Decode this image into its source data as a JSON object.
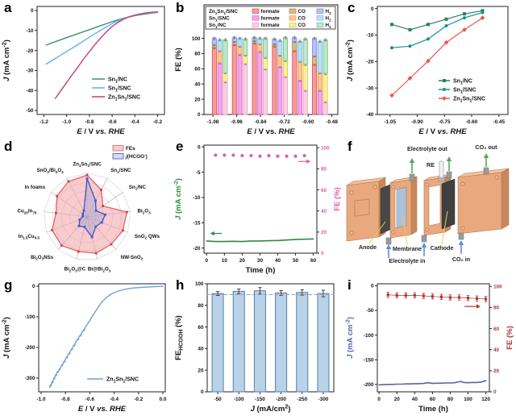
{
  "figure": {
    "background": "#ffffff"
  },
  "panels": {
    "a": {
      "letter": "a"
    },
    "b": {
      "letter": "b"
    },
    "c": {
      "letter": "c"
    },
    "d": {
      "letter": "d"
    },
    "e": {
      "letter": "e"
    },
    "f": {
      "letter": "f",
      "labels": {
        "electrolyte_out": "Electrolyte out",
        "co2_out": "CO₂ out",
        "re": "RE",
        "anode": "Anode",
        "membrane": "Membrane",
        "cathode": "Cathode",
        "electrolyte_in": "Electrolyte in",
        "co2_in": "CO₂ in"
      }
    },
    "g": {
      "letter": "g"
    },
    "h": {
      "letter": "h"
    },
    "i": {
      "letter": "i"
    }
  },
  "chart_data": [
    {
      "id": "a",
      "type": "line",
      "xlabel": "*E* / V *vs. RHE*",
      "ylabel": "*J* (mA cm^{-2})",
      "xlim": [
        -1.26,
        -0.14
      ],
      "ylim": [
        -52,
        2
      ],
      "xticks": [
        "-1.2",
        "-1.0",
        "-0.8",
        "-0.6",
        "-0.4",
        "-0.2"
      ],
      "yticks": [
        "0",
        "-10",
        "-20",
        "-30",
        "-40",
        "-50"
      ],
      "series": [
        {
          "name": "Sn_{1}/NC",
          "color": "#3d8e72",
          "x": [
            -1.18,
            -1.1,
            -1.0,
            -0.9,
            -0.8,
            -0.7,
            -0.6,
            -0.5,
            -0.45,
            -0.4,
            -0.35,
            -0.3,
            -0.25,
            -0.2
          ],
          "y": [
            -17.3,
            -15.6,
            -13.6,
            -11.6,
            -9.6,
            -7.6,
            -5.6,
            -3.9,
            -3.2,
            -2.6,
            -2.1,
            -1.7,
            -1.3,
            -1.0
          ]
        },
        {
          "name": "Sn_{1}/SNC",
          "color": "#57b7e8",
          "x": [
            -1.18,
            -1.1,
            -1.05,
            -1.0,
            -0.95,
            -0.9,
            -0.85,
            -0.8,
            -0.75,
            -0.7,
            -0.65,
            -0.6,
            -0.55,
            -0.5,
            -0.45,
            -0.4,
            -0.35,
            -0.3,
            -0.25,
            -0.2
          ],
          "y": [
            -26.8,
            -24.0,
            -22.3,
            -20.5,
            -18.8,
            -17.0,
            -15.2,
            -13.4,
            -11.6,
            -9.9,
            -8.2,
            -6.6,
            -5.2,
            -4.0,
            -3.1,
            -2.4,
            -1.8,
            -1.4,
            -1.1,
            -0.9
          ]
        },
        {
          "name": "Zn_{1}Sn_{1}/SNC",
          "color": "#c23e78",
          "x": [
            -1.1,
            -1.05,
            -1.0,
            -0.95,
            -0.9,
            -0.85,
            -0.8,
            -0.75,
            -0.7,
            -0.65,
            -0.6,
            -0.55,
            -0.5,
            -0.45,
            -0.4,
            -0.35,
            -0.3,
            -0.25,
            -0.2
          ],
          "y": [
            -44.0,
            -40.0,
            -36.0,
            -32.0,
            -28.2,
            -24.2,
            -20.6,
            -17.0,
            -13.7,
            -10.6,
            -8.0,
            -6.0,
            -4.4,
            -3.2,
            -2.3,
            -1.7,
            -1.2,
            -0.9,
            -0.7
          ]
        }
      ]
    },
    {
      "id": "b",
      "type": "stacked-bar",
      "xlabel": "*E* / V vs. *RHE*",
      "ylabel": "FE (%)",
      "xlim": [
        -1.125,
        -0.45
      ],
      "ylim": [
        0,
        144
      ],
      "xticks": [
        "-1.08",
        "-0.96",
        "-0.84",
        "-0.72",
        "-0.60",
        "-0.48"
      ],
      "yticks": [
        "0",
        "20",
        "40",
        "60",
        "80",
        "100"
      ],
      "group_pos": [
        -1.045,
        -0.944,
        -0.843,
        -0.742,
        -0.641,
        -0.54
      ],
      "series": [
        {
          "name": "Zn_{1}Sn_{1}/SNC",
          "segments": [
            {
              "label": "formate",
              "fill": "#f59b9b",
              "stroke": "#d94f4f",
              "values": [
                88,
                92,
                94,
                90,
                84,
                66
              ]
            },
            {
              "label": "CO",
              "fill": "#d9bc84",
              "stroke": "#a8863d",
              "values": [
                4,
                4,
                3,
                3,
                12,
                11
              ]
            },
            {
              "label": "H_{2}",
              "fill": "#b9c0f7",
              "stroke": "#7b87dd",
              "values": [
                8,
                5,
                4,
                6,
                5,
                23
              ]
            }
          ]
        },
        {
          "name": "Sn_{1}/SNC",
          "segments": [
            {
              "label": "formate",
              "fill": "#f2a6ec",
              "stroke": "#d95fcf",
              "values": [
                68,
                79,
                83,
                63,
                45,
                32
              ]
            },
            {
              "label": "CO",
              "fill": "#f9c695",
              "stroke": "#ee9440",
              "values": [
                16,
                11,
                10,
                15,
                25,
                23
              ]
            },
            {
              "label": "H_{2}",
              "fill": "#bce0f7",
              "stroke": "#72b6e3",
              "values": [
                14,
                10,
                7,
                19,
                26,
                41
              ]
            }
          ]
        },
        {
          "name": "Sn_{1}/NC",
          "segments": [
            {
              "label": "formate",
              "fill": "#f9cfe0",
              "stroke": "#ef9fc0",
              "values": [
                43,
                67,
                60,
                50,
                32,
                17
              ]
            },
            {
              "label": "CO",
              "fill": "#f7ef9f",
              "stroke": "#ddc93f",
              "values": [
                12,
                11,
                15,
                21,
                34,
                37
              ]
            },
            {
              "label": "H_{2}",
              "fill": "#bfe8c9",
              "stroke": "#6fc488",
              "values": [
                43,
                21,
                25,
                30,
                33,
                44
              ]
            }
          ]
        }
      ]
    },
    {
      "id": "c",
      "type": "linemark",
      "xlabel": "*E* / V *vs. RHE*",
      "ylabel": "*J* (mA cm^{-2})",
      "xlim": [
        -1.12,
        -0.4
      ],
      "ylim": [
        -40,
        0.8
      ],
      "xticks": [
        "-1.05",
        "-0.90",
        "-0.75",
        "-0.60",
        "-0.45"
      ],
      "yticks": [
        "0",
        "-10",
        "-20",
        "-30",
        "-40"
      ],
      "series": [
        {
          "name": "Sn_{1}/NC",
          "color": "#2b7d5f",
          "marker": "square",
          "x": [
            -1.04,
            -0.94,
            -0.84,
            -0.74,
            -0.64,
            -0.54
          ],
          "y": [
            -6.0,
            -8.0,
            -6.0,
            -4.0,
            -2.0,
            -0.8
          ]
        },
        {
          "name": "Sn_{1}/SNC",
          "color": "#13948b",
          "marker": "circle",
          "x": [
            -1.04,
            -0.94,
            -0.84,
            -0.74,
            -0.64,
            -0.54
          ],
          "y": [
            -14.8,
            -14.2,
            -11.5,
            -6.5,
            -3.5,
            -1.5
          ]
        },
        {
          "name": "Zn_{1}Sn_{1}/SNC",
          "color": "#e8554d",
          "marker": "diamond",
          "x": [
            -1.04,
            -0.94,
            -0.84,
            -0.74,
            -0.64,
            -0.54
          ],
          "y": [
            -32.8,
            -26.3,
            -19.8,
            -12.8,
            -8.0,
            -3.5
          ]
        }
      ]
    },
    {
      "id": "d",
      "type": "radar",
      "categories": [
        "Zn_{1}Sn_{1}/SNC",
        "Sn_{1}/SNC",
        "Sn_{1}/NC",
        "Bi_{2}O_{3}",
        "SnO_{2} QWs",
        "NW-SnO_{2}",
        "Bi@Bi_{2}O_{3}",
        "Bi_{2}O_{3}@C",
        "Bi_{2}O_{3}NSs",
        "In_{1.5}Cu_{0.5}",
        "Cu_{20}In_{75}",
        "In foams",
        "SnO_{2}/Bi_{2}O_{3}"
      ],
      "rings": 5,
      "series": [
        {
          "name": "FEs",
          "color": "#e26168",
          "fill": "rgba(243,160,165,0.55)",
          "marker_color": "#cf3f48",
          "values": [
            0.96,
            0.7,
            0.44,
            0.92,
            0.88,
            0.84,
            0.86,
            0.82,
            0.88,
            0.86,
            0.72,
            0.84,
            0.92
          ]
        },
        {
          "name": "*j*(HCOO^{-})",
          "color": "#3a55c0",
          "fill": "rgba(148,160,215,0.38)",
          "marker_color": "#3f5fc4",
          "values": [
            0.88,
            0.42,
            0.25,
            0.42,
            0.36,
            0.3,
            0.48,
            0.24,
            0.28,
            0.18,
            0.1,
            0.12,
            0.16
          ]
        }
      ]
    },
    {
      "id": "e",
      "type": "dual",
      "xlabel": "Time (h)",
      "ylabel": "*J* (mA cm^{-2})",
      "ylabel_color": "#2e8b3d",
      "ylabel_right": "FE (%)",
      "right_color": "#dd5fa4",
      "xlim": [
        -1.5,
        62
      ],
      "ylim": [
        -21,
        0.35
      ],
      "ylim_right": [
        0,
        102.5
      ],
      "xticks": [
        "0",
        "10",
        "20",
        "30",
        "40",
        "50",
        "60"
      ],
      "yticks": [
        "0",
        "-5",
        "-10",
        "-15",
        "-20"
      ],
      "yticks_right": [
        "0",
        "20",
        "40",
        "60",
        "80",
        "100"
      ],
      "series": [
        {
          "name": "J",
          "axis": "left",
          "kind": "line",
          "color": "#2e8b3d",
          "x": [
            0,
            5,
            10,
            15,
            20,
            25,
            30,
            35,
            40,
            45,
            50,
            55,
            60
          ],
          "y": [
            -18.6,
            -18.7,
            -18.7,
            -18.65,
            -18.7,
            -18.6,
            -18.6,
            -18.55,
            -18.5,
            -18.4,
            -18.3,
            -18.25,
            -18.2
          ]
        },
        {
          "name": "FE",
          "axis": "right",
          "kind": "scatter",
          "marker": "circle",
          "msize": 4.2,
          "color": "#dd5fa4",
          "x": [
            5,
            10,
            15,
            20,
            25,
            30,
            35,
            40,
            45,
            50,
            55
          ],
          "y": [
            93,
            93,
            93,
            92.5,
            92.5,
            92,
            92.5,
            92,
            92,
            92,
            92.5
          ]
        }
      ],
      "annotations": [
        {
          "axis": "left",
          "y": -17.1,
          "x1": 8.5,
          "x2": 2,
          "color": "#2e8b3d"
        },
        {
          "axis": "right",
          "y": 87,
          "x1": 51.5,
          "x2": 58.5,
          "color": "#dd5fa4"
        }
      ]
    },
    {
      "id": "g",
      "type": "line",
      "xlabel": "*E* / V *vs. RHE*",
      "ylabel": "*J* (mA cm^{-2})",
      "xlim": [
        -1.02,
        0.02
      ],
      "ylim": [
        -345,
        8
      ],
      "xticks": [
        "-1.0",
        "-0.8",
        "-0.6",
        "-0.4",
        "-0.2",
        "0.0"
      ],
      "yticks": [
        "0",
        "-100",
        "-200",
        "-300"
      ],
      "series": [
        {
          "name": "Zn_{1}Sn_{1}/SNC",
          "color": "#6f9fd4",
          "x": [
            -0.93,
            -0.925,
            -0.92,
            -0.915,
            -0.91,
            -0.905,
            -0.9,
            -0.895,
            -0.89,
            -0.885,
            -0.88,
            -0.875,
            -0.87,
            -0.865,
            -0.86,
            -0.85,
            -0.845,
            -0.84,
            -0.83,
            -0.825,
            -0.82,
            -0.81,
            -0.805,
            -0.8,
            -0.79,
            -0.785,
            -0.78,
            -0.77,
            -0.765,
            -0.76,
            -0.75,
            -0.745,
            -0.74,
            -0.73,
            -0.725,
            -0.72,
            -0.71,
            -0.7,
            -0.695,
            -0.69,
            -0.68,
            -0.675,
            -0.67,
            -0.66,
            -0.65,
            -0.645,
            -0.64,
            -0.63,
            -0.62,
            -0.61,
            -0.6,
            -0.59,
            -0.58,
            -0.57,
            -0.56,
            -0.55,
            -0.54,
            -0.53,
            -0.52,
            -0.51,
            -0.5,
            -0.48,
            -0.46,
            -0.44,
            -0.42,
            -0.4,
            -0.37,
            -0.34,
            -0.31,
            -0.28,
            -0.25,
            -0.22,
            -0.18,
            -0.14,
            -0.1,
            -0.05,
            0.0
          ],
          "y": [
            -331,
            -323,
            -327,
            -318,
            -312,
            -316,
            -306,
            -300,
            -303,
            -295,
            -289,
            -292,
            -284,
            -278,
            -281,
            -270,
            -273,
            -264,
            -257,
            -260,
            -251,
            -244,
            -247,
            -238,
            -231,
            -234,
            -225,
            -218,
            -221,
            -212,
            -205,
            -208,
            -199,
            -192,
            -195,
            -186,
            -179,
            -173,
            -176,
            -167,
            -160,
            -163,
            -154,
            -148,
            -142,
            -145,
            -136,
            -130,
            -124,
            -118,
            -112,
            -105,
            -99,
            -93,
            -86,
            -80,
            -74,
            -68,
            -62,
            -56,
            -51,
            -43,
            -36,
            -30,
            -25,
            -21,
            -16,
            -13,
            -10,
            -8,
            -6,
            -5,
            -4,
            -3,
            -2,
            -1,
            -0.5
          ]
        }
      ]
    },
    {
      "id": "h",
      "type": "bar",
      "xlabel": "*J* (mA/cm^{2})",
      "ylabel": "FE_{HCOOH} (%)",
      "ylim": [
        0,
        100
      ],
      "yticks": [
        "0",
        "20",
        "40",
        "60",
        "80",
        "100"
      ],
      "categories": [
        "-50",
        "-100",
        "-150",
        "-200",
        "-250",
        "-300"
      ],
      "values": [
        91,
        93,
        93.5,
        91.5,
        92,
        91
      ],
      "errors": [
        1.8,
        2.2,
        3.0,
        2.2,
        2.5,
        3.0
      ],
      "refline": 90,
      "bar_fill": "#bad2e8",
      "bar_stroke": "#4f7fae"
    },
    {
      "id": "i",
      "type": "dual",
      "xlabel": "Time (h)",
      "ylabel": "*J* (mA cm^{-2})",
      "ylabel_color": "#4f66b0",
      "ylabel_right": "FE (%)",
      "right_color": "#b03434",
      "xlim": [
        -2,
        124
      ],
      "ylim": [
        -215,
        4
      ],
      "ylim_right": [
        0,
        102.5
      ],
      "xticks": [
        "0",
        "20",
        "40",
        "60",
        "80",
        "100",
        "120"
      ],
      "yticks": [
        "0",
        "-50",
        "-100",
        "-150",
        "-200"
      ],
      "yticks_right": [
        "0",
        "20",
        "40",
        "60",
        "80",
        "100"
      ],
      "series": [
        {
          "name": "J",
          "axis": "left",
          "kind": "line",
          "color": "#5c63a2",
          "x": [
            0,
            5,
            10,
            15,
            20,
            25,
            30,
            35,
            40,
            45,
            50,
            55,
            60,
            65,
            70,
            75,
            80,
            85,
            90,
            92,
            95,
            100,
            105,
            110,
            115,
            120
          ],
          "y": [
            -201,
            -200.5,
            -200,
            -200,
            -199.5,
            -199.5,
            -199,
            -199,
            -198.5,
            -198.5,
            -198,
            -196.5,
            -198,
            -197.5,
            -197.5,
            -197,
            -197,
            -196.5,
            -194.5,
            -194,
            -196,
            -196.5,
            -196,
            -196,
            -195,
            -192.5
          ]
        },
        {
          "name": "FE",
          "axis": "right",
          "kind": "scatter",
          "marker": "square",
          "msize": 3.2,
          "color": "#b03434",
          "connect": true,
          "err": 2.5,
          "x": [
            10,
            20,
            30,
            40,
            50,
            60,
            70,
            80,
            90,
            100,
            110,
            120
          ],
          "y": [
            92,
            91.5,
            91.5,
            91.5,
            91,
            90.5,
            90,
            89.5,
            89.5,
            89,
            88.5,
            88
          ]
        }
      ],
      "annotations": [
        {
          "axis": "right",
          "y": 81,
          "x1": 96,
          "x2": 114,
          "color": "#b03434"
        }
      ]
    }
  ]
}
